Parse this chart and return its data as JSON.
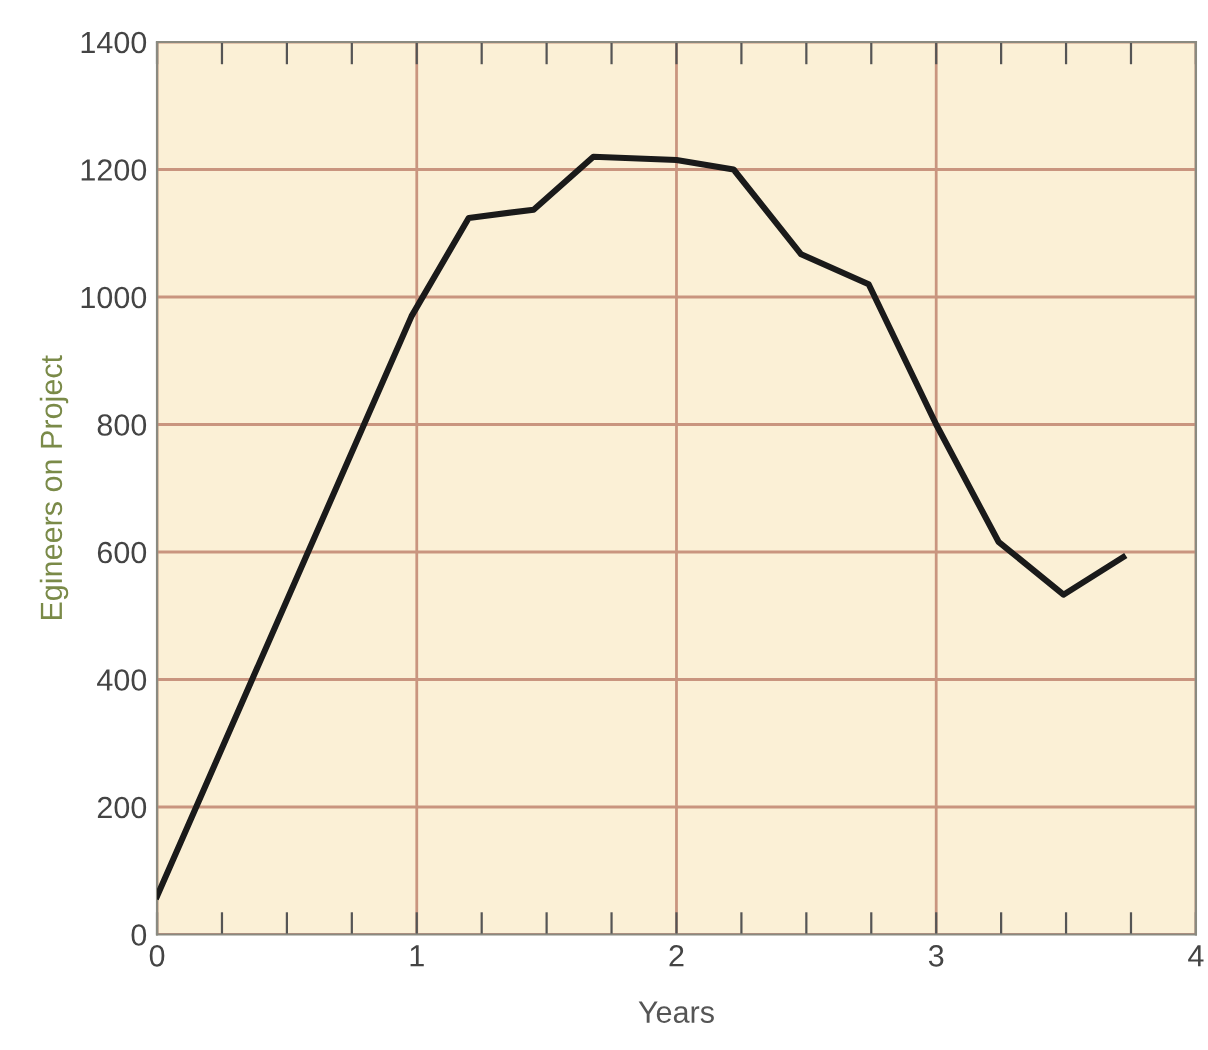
{
  "chart_data": {
    "type": "line",
    "xlabel": "Years",
    "ylabel": "Egineers on Project",
    "x": [
      0,
      0.98,
      1.2,
      1.45,
      1.68,
      2.0,
      2.22,
      2.48,
      2.74,
      3.0,
      3.24,
      3.49,
      3.72
    ],
    "series": [
      {
        "color": "#1a1a1a",
        "values": [
          60,
          970,
          1124,
          1137,
          1220,
          1215,
          1200,
          1067,
          1020,
          800,
          616,
          533,
          592
        ]
      }
    ],
    "xlim": [
      0,
      4
    ],
    "ylim": [
      0,
      1400
    ],
    "xticks": [
      0,
      {
        "value": 0.25,
        "label": null
      },
      {
        "value": 0.5,
        "label": null
      },
      {
        "value": 0.75,
        "label": null
      },
      1,
      {
        "value": 1.25,
        "label": null
      },
      {
        "value": 1.5,
        "label": null
      },
      {
        "value": 1.75,
        "label": null
      },
      2,
      {
        "value": 2.25,
        "label": null
      },
      {
        "value": 2.5,
        "label": null
      },
      {
        "value": 2.75,
        "label": null
      },
      3,
      {
        "value": 3.25,
        "label": null
      },
      {
        "value": 3.5,
        "label": null
      },
      {
        "value": 3.75,
        "label": null
      },
      4
    ],
    "yticks": [
      0,
      200,
      400,
      600,
      800,
      1000,
      1200,
      1400
    ],
    "grid": true,
    "line_style": "solid",
    "marker": "none"
  }
}
